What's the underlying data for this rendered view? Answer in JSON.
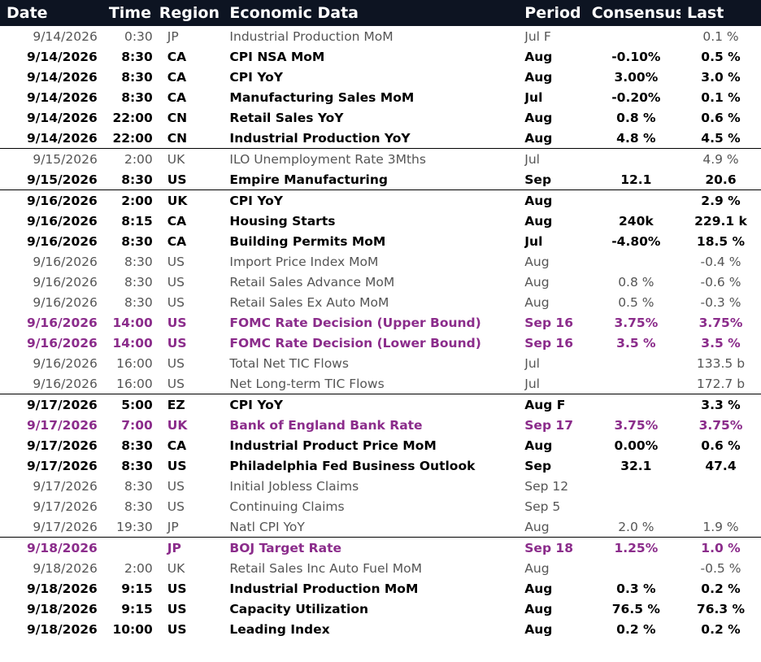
{
  "headers": {
    "date": "Date",
    "time": "Time",
    "region": "Region",
    "event": "Economic Data",
    "period": "Period",
    "consensus": "Consensus",
    "last": "Last"
  },
  "colors": {
    "header_bg": "#0d1422",
    "header_text": "#ffffff",
    "highlight": "#8b2c8b",
    "regular_text": "#555555",
    "bold_text": "#000000"
  },
  "rows": [
    {
      "date": "9/14/2026",
      "time": "0:30",
      "region": "JP",
      "event": "Industrial Production MoM",
      "period": "Jul F",
      "consensus": "",
      "last": "0.1 %",
      "style": "regular",
      "sep": false
    },
    {
      "date": "9/14/2026",
      "time": "8:30",
      "region": "CA",
      "event": "CPI NSA MoM",
      "period": "Aug",
      "consensus": "-0.10%",
      "last": "0.5 %",
      "style": "bold",
      "sep": false
    },
    {
      "date": "9/14/2026",
      "time": "8:30",
      "region": "CA",
      "event": "CPI YoY",
      "period": "Aug",
      "consensus": "3.00%",
      "last": "3.0 %",
      "style": "bold",
      "sep": false
    },
    {
      "date": "9/14/2026",
      "time": "8:30",
      "region": "CA",
      "event": "Manufacturing Sales MoM",
      "period": "Jul",
      "consensus": "-0.20%",
      "last": "0.1 %",
      "style": "bold",
      "sep": false
    },
    {
      "date": "9/14/2026",
      "time": "22:00",
      "region": "CN",
      "event": "Retail Sales YoY",
      "period": "Aug",
      "consensus": "0.8 %",
      "last": "0.6 %",
      "style": "bold",
      "sep": false
    },
    {
      "date": "9/14/2026",
      "time": "22:00",
      "region": "CN",
      "event": "Industrial Production YoY",
      "period": "Aug",
      "consensus": "4.8 %",
      "last": "4.5 %",
      "style": "bold",
      "sep": false
    },
    {
      "date": "9/15/2026",
      "time": "2:00",
      "region": "UK",
      "event": "ILO Unemployment Rate 3Mths",
      "period": "Jul",
      "consensus": "",
      "last": "4.9 %",
      "style": "regular",
      "sep": true
    },
    {
      "date": "9/15/2026",
      "time": "8:30",
      "region": "US",
      "event": "Empire Manufacturing",
      "period": "Sep",
      "consensus": "12.1",
      "last": "20.6",
      "style": "bold",
      "sep": false
    },
    {
      "date": "9/16/2026",
      "time": "2:00",
      "region": "UK",
      "event": "CPI YoY",
      "period": "Aug",
      "consensus": "",
      "last": "2.9 %",
      "style": "bold",
      "sep": true
    },
    {
      "date": "9/16/2026",
      "time": "8:15",
      "region": "CA",
      "event": "Housing Starts",
      "period": "Aug",
      "consensus": "240k",
      "last": "229.1 k",
      "style": "bold",
      "sep": false
    },
    {
      "date": "9/16/2026",
      "time": "8:30",
      "region": "CA",
      "event": "Building Permits MoM",
      "period": "Jul",
      "consensus": "-4.80%",
      "last": "18.5 %",
      "style": "bold",
      "sep": false
    },
    {
      "date": "9/16/2026",
      "time": "8:30",
      "region": "US",
      "event": "Import Price Index MoM",
      "period": "Aug",
      "consensus": "",
      "last": "-0.4 %",
      "style": "regular",
      "sep": false
    },
    {
      "date": "9/16/2026",
      "time": "8:30",
      "region": "US",
      "event": "Retail Sales Advance MoM",
      "period": "Aug",
      "consensus": "0.8 %",
      "last": "-0.6 %",
      "style": "regular",
      "sep": false
    },
    {
      "date": "9/16/2026",
      "time": "8:30",
      "region": "US",
      "event": "Retail Sales Ex Auto MoM",
      "period": "Aug",
      "consensus": "0.5 %",
      "last": "-0.3 %",
      "style": "regular",
      "sep": false
    },
    {
      "date": "9/16/2026",
      "time": "14:00",
      "region": "US",
      "event": "FOMC Rate Decision (Upper Bound)",
      "period": "Sep 16",
      "consensus": "3.75%",
      "last": "3.75%",
      "style": "purple",
      "sep": false
    },
    {
      "date": "9/16/2026",
      "time": "14:00",
      "region": "US",
      "event": "FOMC Rate Decision (Lower Bound)",
      "period": "Sep 16",
      "consensus": "3.5 %",
      "last": "3.5 %",
      "style": "purple",
      "sep": false
    },
    {
      "date": "9/16/2026",
      "time": "16:00",
      "region": "US",
      "event": "Total Net TIC Flows",
      "period": "Jul",
      "consensus": "",
      "last": "133.5 b",
      "style": "regular",
      "sep": false
    },
    {
      "date": "9/16/2026",
      "time": "16:00",
      "region": "US",
      "event": "Net Long-term TIC Flows",
      "period": "Jul",
      "consensus": "",
      "last": "172.7 b",
      "style": "regular",
      "sep": false
    },
    {
      "date": "9/17/2026",
      "time": "5:00",
      "region": "EZ",
      "event": "CPI YoY",
      "period": "Aug F",
      "consensus": "",
      "last": "3.3 %",
      "style": "bold",
      "sep": true
    },
    {
      "date": "9/17/2026",
      "time": "7:00",
      "region": "UK",
      "event": "Bank of England Bank Rate",
      "period": "Sep 17",
      "consensus": "3.75%",
      "last": "3.75%",
      "style": "purple",
      "sep": false
    },
    {
      "date": "9/17/2026",
      "time": "8:30",
      "region": "CA",
      "event": "Industrial Product Price MoM",
      "period": "Aug",
      "consensus": "0.00%",
      "last": "0.6 %",
      "style": "bold",
      "sep": false
    },
    {
      "date": "9/17/2026",
      "time": "8:30",
      "region": "US",
      "event": "Philadelphia Fed Business Outlook",
      "period": "Sep",
      "consensus": "32.1",
      "last": "47.4",
      "style": "bold",
      "sep": false
    },
    {
      "date": "9/17/2026",
      "time": "8:30",
      "region": "US",
      "event": "Initial Jobless Claims",
      "period": "Sep 12",
      "consensus": "",
      "last": "",
      "style": "regular",
      "sep": false
    },
    {
      "date": "9/17/2026",
      "time": "8:30",
      "region": "US",
      "event": "Continuing Claims",
      "period": "Sep 5",
      "consensus": "",
      "last": "",
      "style": "regular",
      "sep": false
    },
    {
      "date": "9/17/2026",
      "time": "19:30",
      "region": "JP",
      "event": "Natl CPI YoY",
      "period": "Aug",
      "consensus": "2.0 %",
      "last": "1.9 %",
      "style": "regular",
      "sep": false
    },
    {
      "date": "9/18/2026",
      "time": "",
      "region": "JP",
      "event": "BOJ Target Rate",
      "period": "Sep 18",
      "consensus": "1.25%",
      "last": "1.0 %",
      "style": "purple",
      "sep": true
    },
    {
      "date": "9/18/2026",
      "time": "2:00",
      "region": "UK",
      "event": "Retail Sales Inc Auto Fuel MoM",
      "period": "Aug",
      "consensus": "",
      "last": "-0.5 %",
      "style": "regular",
      "sep": false
    },
    {
      "date": "9/18/2026",
      "time": "9:15",
      "region": "US",
      "event": "Industrial Production MoM",
      "period": "Aug",
      "consensus": "0.3 %",
      "last": "0.2 %",
      "style": "bold",
      "sep": false
    },
    {
      "date": "9/18/2026",
      "time": "9:15",
      "region": "US",
      "event": "Capacity Utilization",
      "period": "Aug",
      "consensus": "76.5 %",
      "last": "76.3 %",
      "style": "bold",
      "sep": false
    },
    {
      "date": "9/18/2026",
      "time": "10:00",
      "region": "US",
      "event": "Leading Index",
      "period": "Aug",
      "consensus": "0.2 %",
      "last": "0.2 %",
      "style": "bold",
      "sep": false
    }
  ]
}
